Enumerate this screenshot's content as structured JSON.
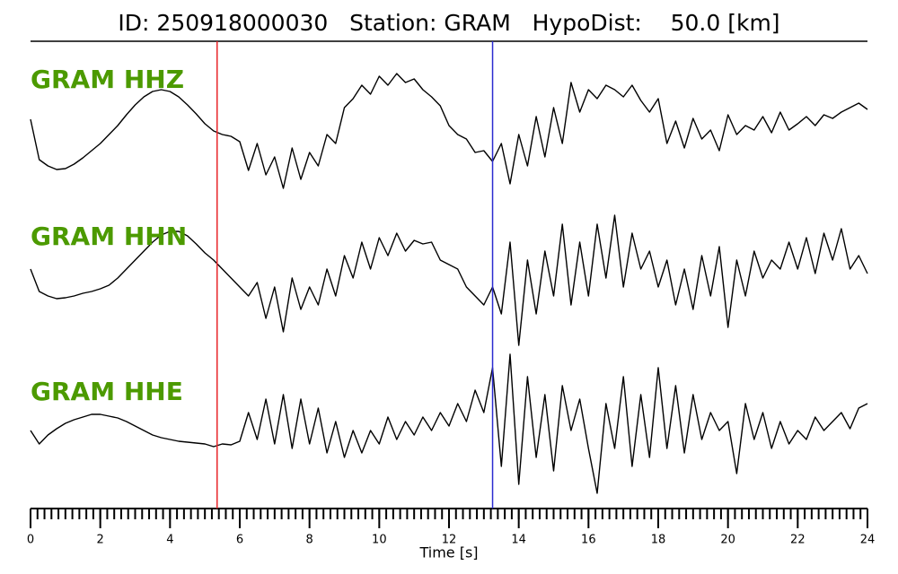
{
  "chart_data": {
    "type": "line",
    "title": "ID: 250918000030   Station: GRAM   HypoDist:    50.0 [km]",
    "xlabel": "Time [s]",
    "xlim": [
      0,
      24
    ],
    "xticks": [
      0,
      2,
      4,
      6,
      8,
      10,
      12,
      14,
      16,
      18,
      20,
      22,
      24
    ],
    "xminorticks": [
      0,
      0.2,
      0.4,
      0.6,
      0.8,
      1,
      1.2,
      1.4,
      1.6,
      1.8,
      2,
      2.2,
      2.4,
      2.6,
      2.8,
      3,
      3.2,
      3.4,
      3.6,
      3.8,
      4,
      4.2,
      4.4,
      4.6,
      4.8,
      5,
      5.2,
      5.4,
      5.6,
      5.8,
      6,
      6.2,
      6.4,
      6.6,
      6.8,
      7,
      7.2,
      7.4,
      7.6,
      7.8,
      8,
      8.2,
      8.4,
      8.6,
      8.8,
      9,
      9.2,
      9.4,
      9.6,
      9.8,
      10,
      10.2,
      10.4,
      10.6,
      10.8,
      11,
      11.2,
      11.4,
      11.6,
      11.8,
      12,
      12.2,
      12.4,
      12.6,
      12.8,
      13,
      13.2,
      13.4,
      13.6,
      13.8,
      14,
      14.2,
      14.4,
      14.6,
      14.8,
      15,
      15.2,
      15.4,
      15.6,
      15.8,
      16,
      16.2,
      16.4,
      16.6,
      16.8,
      17,
      17.2,
      17.4,
      17.6,
      17.8,
      18,
      18.2,
      18.4,
      18.6,
      18.8,
      19,
      19.2,
      19.4,
      19.6,
      19.8,
      20,
      20.2,
      20.4,
      20.6,
      20.8,
      21,
      21.2,
      21.4,
      21.6,
      21.8,
      22,
      22.2,
      22.4,
      22.6,
      22.8,
      23,
      23.2,
      23.4,
      23.6,
      23.8,
      24
    ],
    "picks": [
      {
        "x": 5.35,
        "color": "#e8262a"
      },
      {
        "x": 13.25,
        "color": "#2b2bd0"
      }
    ],
    "x": [
      0,
      0.25,
      0.5,
      0.75,
      1,
      1.25,
      1.5,
      1.75,
      2,
      2.25,
      2.5,
      2.75,
      3,
      3.25,
      3.5,
      3.75,
      4,
      4.25,
      4.5,
      4.75,
      5,
      5.25,
      5.5,
      5.75,
      6,
      6.25,
      6.5,
      6.75,
      7,
      7.25,
      7.5,
      7.75,
      8,
      8.25,
      8.5,
      8.75,
      9,
      9.25,
      9.5,
      9.75,
      10,
      10.25,
      10.5,
      10.75,
      11,
      11.25,
      11.5,
      11.75,
      12,
      12.25,
      12.5,
      12.75,
      13,
      13.25,
      13.5,
      13.75,
      14,
      14.25,
      14.5,
      14.75,
      15,
      15.25,
      15.5,
      15.75,
      16,
      16.25,
      16.5,
      16.75,
      17,
      17.25,
      17.5,
      17.75,
      18,
      18.25,
      18.5,
      18.75,
      19,
      19.25,
      19.5,
      19.75,
      20,
      20.25,
      20.5,
      20.75,
      21,
      21.25,
      21.5,
      21.75,
      22,
      22.25,
      22.5,
      22.75,
      23,
      23.25,
      23.5,
      23.75,
      24
    ],
    "label_color": "#4c9a00",
    "series": [
      {
        "name": "GRAM HHZ",
        "color": "#000000",
        "ylim": [
          -80,
          80
        ],
        "values": [
          7,
          -38,
          -45,
          -49,
          -48,
          -43,
          -36,
          -28,
          -20,
          -10,
          0,
          12,
          23,
          32,
          38,
          40,
          38,
          32,
          23,
          13,
          2,
          -6,
          -10,
          -12,
          -18,
          -50,
          -20,
          -55,
          -35,
          -70,
          -25,
          -60,
          -30,
          -45,
          -10,
          -20,
          20,
          30,
          45,
          35,
          55,
          45,
          58,
          48,
          52,
          40,
          32,
          22,
          0,
          -10,
          -15,
          -30,
          -28,
          -40,
          -20,
          -65,
          -10,
          -45,
          10,
          -35,
          20,
          -20,
          48,
          15,
          40,
          30,
          45,
          40,
          32,
          45,
          28,
          15,
          30,
          -20,
          5,
          -25,
          8,
          -15,
          -5,
          -28,
          12,
          -10,
          0,
          -5,
          10,
          -8,
          15,
          -5,
          2,
          10,
          0,
          12,
          8,
          15,
          20,
          25,
          18
        ]
      },
      {
        "name": "GRAM HHN",
        "color": "#000000",
        "ylim": [
          -80,
          80
        ],
        "values": [
          10,
          -15,
          -20,
          -23,
          -22,
          -20,
          -17,
          -15,
          -12,
          -8,
          0,
          10,
          20,
          30,
          40,
          48,
          52,
          52,
          47,
          38,
          28,
          20,
          10,
          0,
          -10,
          -20,
          -5,
          -45,
          -10,
          -60,
          0,
          -35,
          -10,
          -30,
          10,
          -20,
          25,
          0,
          40,
          10,
          45,
          25,
          50,
          30,
          42,
          38,
          40,
          20,
          15,
          10,
          -10,
          -20,
          -30,
          -10,
          -40,
          40,
          -75,
          20,
          -40,
          30,
          -20,
          60,
          -30,
          40,
          -20,
          60,
          0,
          70,
          -10,
          50,
          10,
          30,
          -10,
          20,
          -30,
          10,
          -35,
          25,
          -20,
          35,
          -55,
          20,
          -20,
          30,
          0,
          20,
          10,
          40,
          10,
          45,
          5,
          50,
          20,
          55,
          10,
          25,
          5
        ]
      },
      {
        "name": "GRAM HHE",
        "color": "#000000",
        "ylim": [
          -80,
          80
        ],
        "values": [
          -10,
          -25,
          -15,
          -8,
          -2,
          2,
          5,
          8,
          8,
          6,
          4,
          0,
          -5,
          -10,
          -15,
          -18,
          -20,
          -22,
          -23,
          -24,
          -25,
          -28,
          -25,
          -26,
          -22,
          10,
          -20,
          25,
          -25,
          30,
          -30,
          25,
          -25,
          15,
          -35,
          0,
          -40,
          -10,
          -35,
          -10,
          -25,
          5,
          -20,
          0,
          -15,
          5,
          -10,
          10,
          -5,
          20,
          0,
          35,
          10,
          60,
          -50,
          75,
          -70,
          50,
          -40,
          30,
          -55,
          40,
          -10,
          25,
          -30,
          -80,
          20,
          -30,
          50,
          -50,
          30,
          -40,
          60,
          -30,
          40,
          -35,
          30,
          -20,
          10,
          -10,
          0,
          -58,
          20,
          -20,
          10,
          -30,
          0,
          -25,
          -10,
          -20,
          5,
          -10,
          0,
          10,
          -8,
          15,
          20
        ]
      }
    ]
  }
}
